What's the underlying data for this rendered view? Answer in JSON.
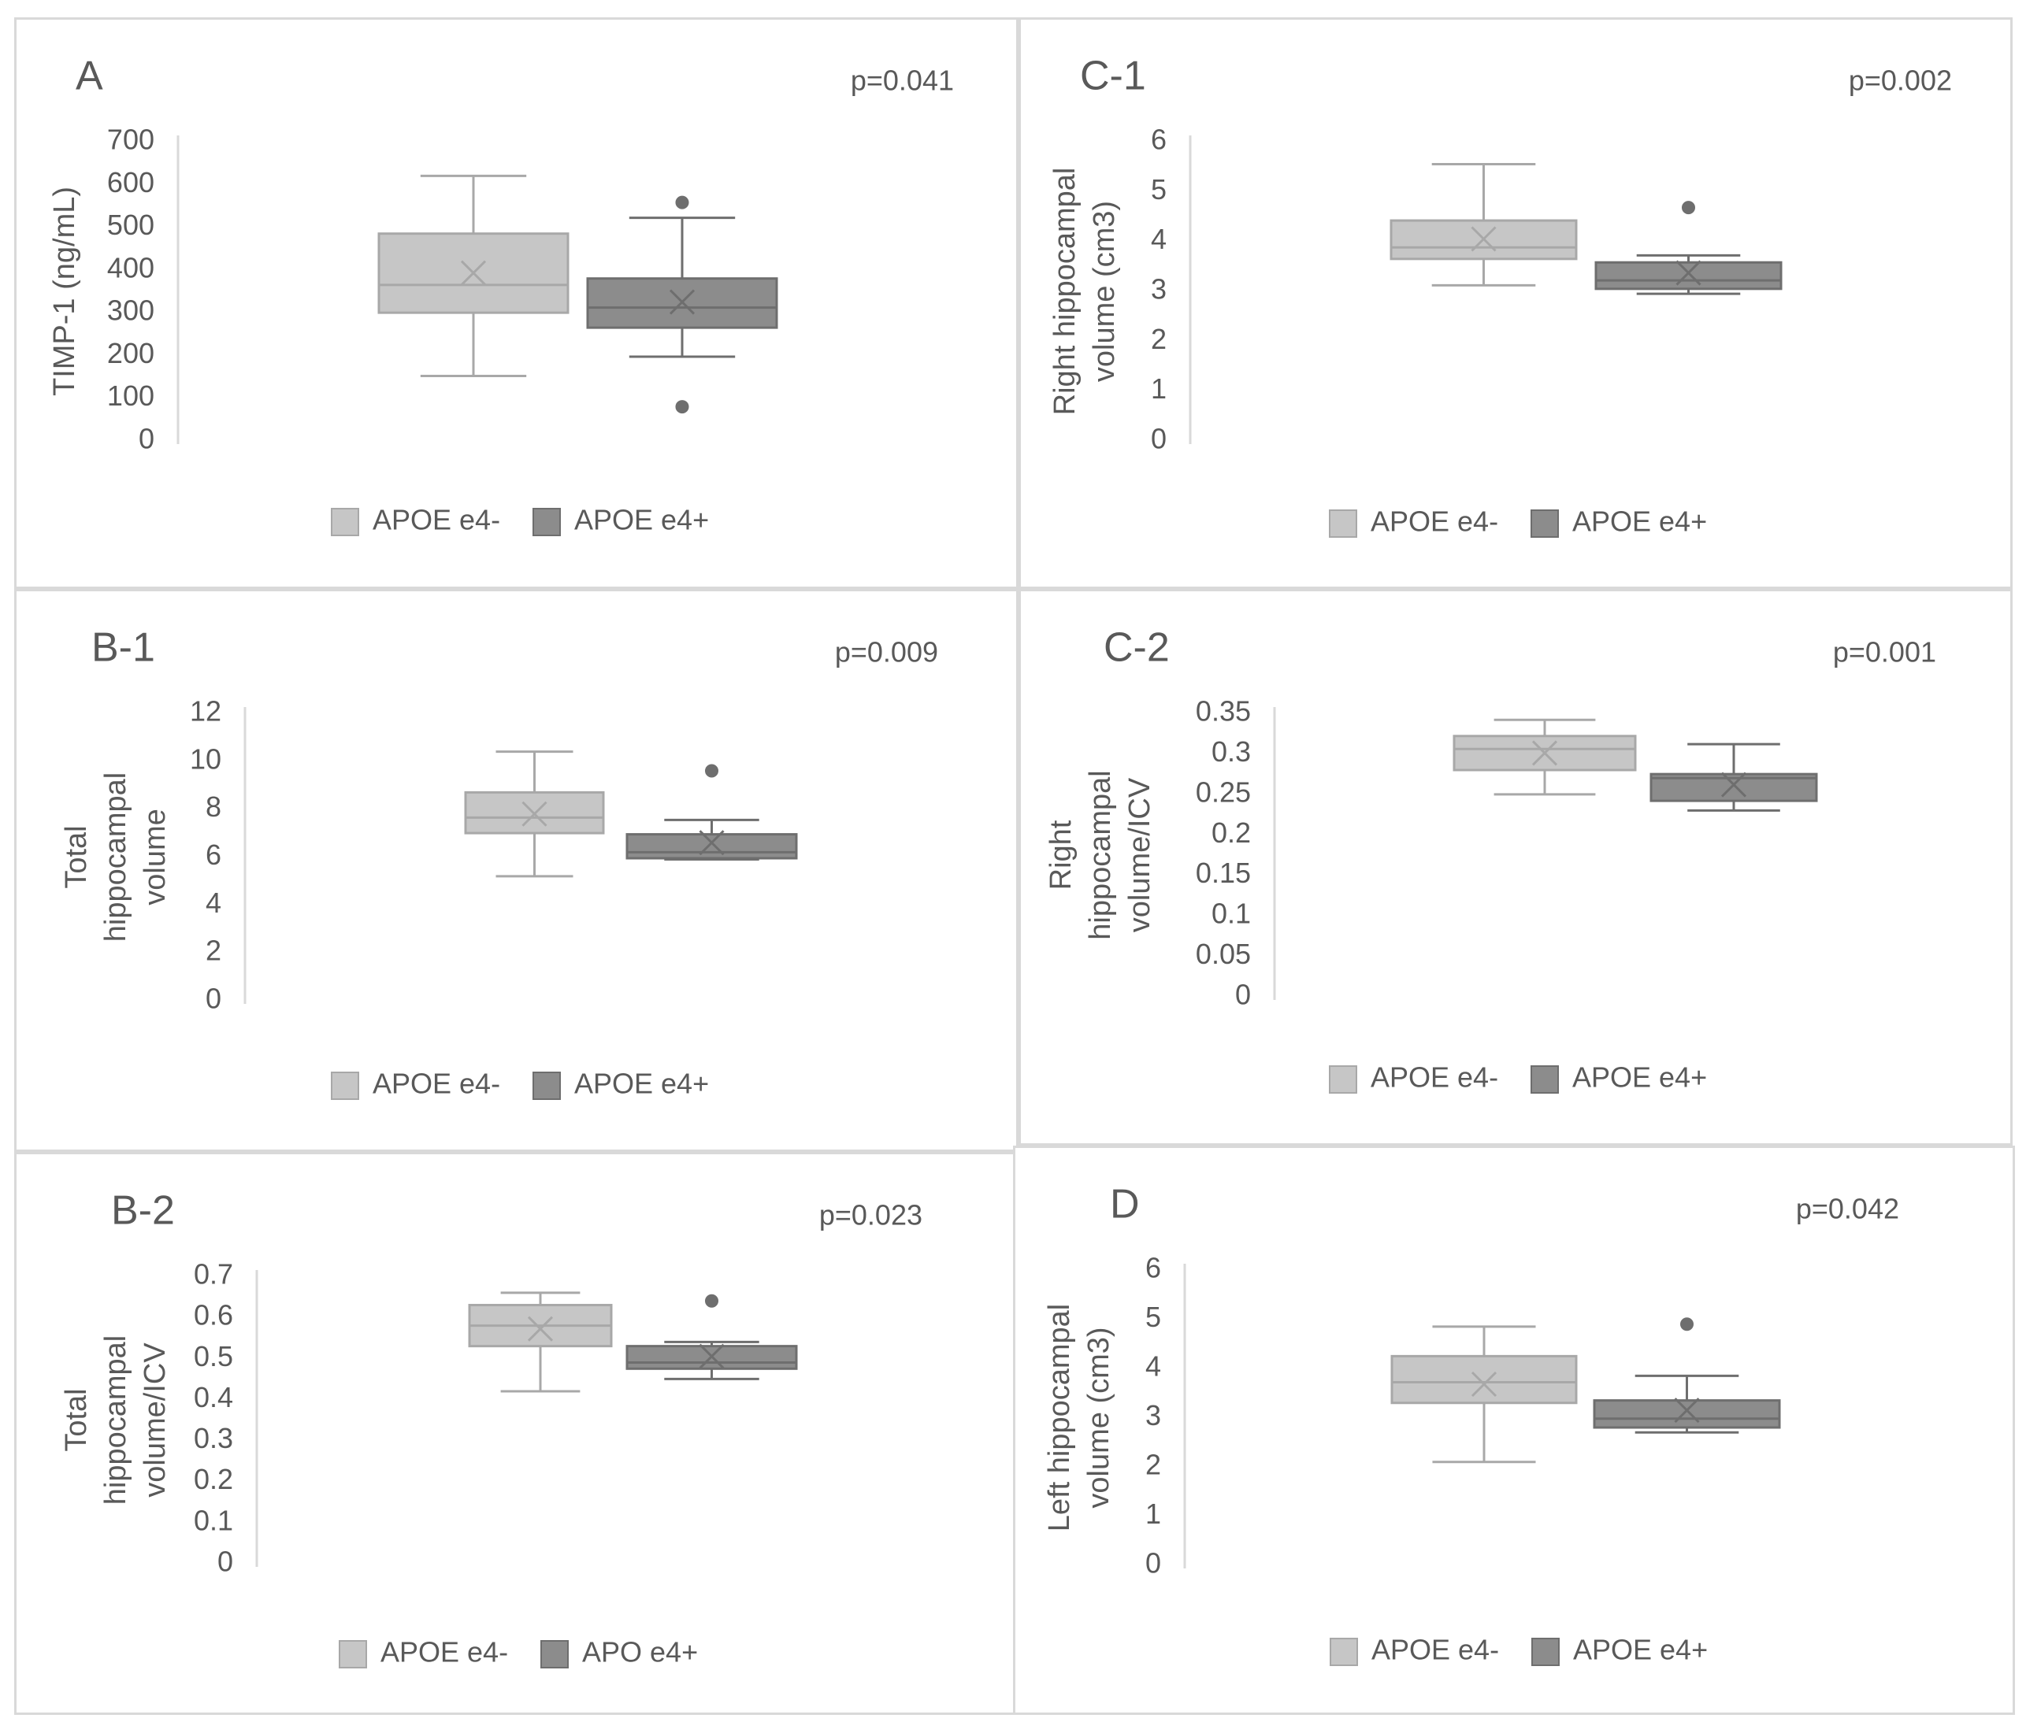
{
  "colors": {
    "e4_neg_fill": "#c6c6c6",
    "e4_neg_stroke": "#a8a8a8",
    "e4_pos_fill": "#8c8c8c",
    "e4_pos_stroke": "#6e6e6e",
    "axis": "#d9d9d9",
    "text": "#595959"
  },
  "chart_data": [
    {
      "id": "A",
      "type": "boxplot",
      "panel_label": "A",
      "p_value": "p=0.041",
      "ylabel_lines": [
        "TIMP-1 (ng/mL)"
      ],
      "ylim": [
        0,
        700
      ],
      "yticks": [
        {
          "v": 0,
          "label": "0"
        },
        {
          "v": 100,
          "label": "100"
        },
        {
          "v": 200,
          "label": "200"
        },
        {
          "v": 300,
          "label": "300"
        },
        {
          "v": 400,
          "label": "400"
        },
        {
          "v": 500,
          "label": "500"
        },
        {
          "v": 600,
          "label": "600"
        },
        {
          "v": 700,
          "label": "700"
        }
      ],
      "grid": false,
      "legend": [
        "APOE e4-",
        "APOE e4+"
      ],
      "groups": [
        {
          "name": "APOE e4-",
          "min": 152,
          "q1": 300,
          "median": 365,
          "q3": 485,
          "max": 620,
          "mean": 393,
          "outliers": []
        },
        {
          "name": "APOE e4+",
          "min": 197,
          "q1": 265,
          "median": 312,
          "q3": 380,
          "max": 522,
          "mean": 325,
          "outliers": [
            80,
            558
          ]
        }
      ]
    },
    {
      "id": "C-1",
      "type": "boxplot",
      "panel_label": "C-1",
      "p_value": "p=0.002",
      "ylabel_lines": [
        "Right hippocampal",
        "volume (cm3)"
      ],
      "ylim": [
        0,
        6
      ],
      "yticks": [
        {
          "v": 0,
          "label": "0"
        },
        {
          "v": 1,
          "label": "1"
        },
        {
          "v": 2,
          "label": "2"
        },
        {
          "v": 3,
          "label": "3"
        },
        {
          "v": 4,
          "label": "4"
        },
        {
          "v": 5,
          "label": "5"
        },
        {
          "v": 6,
          "label": "6"
        }
      ],
      "grid": false,
      "legend": [
        "APOE e4-",
        "APOE e4+"
      ],
      "groups": [
        {
          "name": "APOE e4-",
          "min": 3.12,
          "q1": 3.65,
          "median": 3.88,
          "q3": 4.42,
          "max": 5.55,
          "mean": 4.05,
          "outliers": []
        },
        {
          "name": "APOE e4+",
          "min": 2.95,
          "q1": 3.05,
          "median": 3.22,
          "q3": 3.58,
          "max": 3.72,
          "mean": 3.37,
          "outliers": [
            4.68
          ]
        }
      ]
    },
    {
      "id": "B-1",
      "type": "boxplot",
      "panel_label": "B-1",
      "p_value": "p=0.009",
      "ylabel_lines": [
        "Total",
        "hippocampal",
        "volume"
      ],
      "ylim": [
        0,
        12
      ],
      "yticks": [
        {
          "v": 0,
          "label": "0"
        },
        {
          "v": 2,
          "label": "2"
        },
        {
          "v": 4,
          "label": "4"
        },
        {
          "v": 6,
          "label": "6"
        },
        {
          "v": 8,
          "label": "8"
        },
        {
          "v": 10,
          "label": "10"
        },
        {
          "v": 12,
          "label": "12"
        }
      ],
      "grid": false,
      "legend": [
        "APOE e4-",
        "APOE e4+"
      ],
      "groups": [
        {
          "name": "APOE e4-",
          "min": 5.2,
          "q1": 7.0,
          "median": 7.65,
          "q3": 8.7,
          "max": 10.4,
          "mean": 7.8,
          "outliers": []
        },
        {
          "name": "APOE e4+",
          "min": 5.9,
          "q1": 5.95,
          "median": 6.2,
          "q3": 6.95,
          "max": 7.55,
          "mean": 6.6,
          "outliers": [
            9.6
          ]
        }
      ]
    },
    {
      "id": "C-2",
      "type": "boxplot",
      "panel_label": "C-2",
      "p_value": "p=0.001",
      "ylabel_lines": [
        "Right",
        "hippocampal",
        "volume/ICV"
      ],
      "ylim": [
        0,
        0.35
      ],
      "yticks": [
        {
          "v": 0,
          "label": "0"
        },
        {
          "v": 0.05,
          "label": "0.05"
        },
        {
          "v": 0.1,
          "label": "0.1"
        },
        {
          "v": 0.15,
          "label": "0.15"
        },
        {
          "v": 0.2,
          "label": "0.2"
        },
        {
          "v": 0.25,
          "label": "0.25"
        },
        {
          "v": 0.3,
          "label": "0.3"
        },
        {
          "v": 0.35,
          "label": "0.35"
        }
      ],
      "grid": false,
      "legend": [
        "APOE e4-",
        "APOE e4+"
      ],
      "groups": [
        {
          "name": "APOE e4-",
          "min": 0.25,
          "q1": 0.28,
          "median": 0.306,
          "q3": 0.322,
          "max": 0.342,
          "mean": 0.301,
          "outliers": []
        },
        {
          "name": "APOE e4+",
          "min": 0.23,
          "q1": 0.242,
          "median": 0.27,
          "q3": 0.275,
          "max": 0.312,
          "mean": 0.262,
          "outliers": []
        }
      ]
    },
    {
      "id": "B-2",
      "type": "boxplot",
      "panel_label": "B-2",
      "p_value": "p=0.023",
      "ylabel_lines": [
        "Total",
        "hippocampal",
        "volume/ICV"
      ],
      "ylim": [
        0,
        0.7
      ],
      "yticks": [
        {
          "v": 0,
          "label": "0"
        },
        {
          "v": 0.1,
          "label": "0.1"
        },
        {
          "v": 0.2,
          "label": "0.2"
        },
        {
          "v": 0.3,
          "label": "0.3"
        },
        {
          "v": 0.4,
          "label": "0.4"
        },
        {
          "v": 0.5,
          "label": "0.5"
        },
        {
          "v": 0.6,
          "label": "0.6"
        },
        {
          "v": 0.7,
          "label": "0.7"
        }
      ],
      "grid": false,
      "legend": [
        "APOE e4-",
        "APO e4+"
      ],
      "groups": [
        {
          "name": "APOE e4-",
          "min": 0.42,
          "q1": 0.53,
          "median": 0.58,
          "q3": 0.63,
          "max": 0.66,
          "mean": 0.572,
          "outliers": []
        },
        {
          "name": "APO e4+",
          "min": 0.45,
          "q1": 0.475,
          "median": 0.49,
          "q3": 0.53,
          "max": 0.54,
          "mean": 0.505,
          "outliers": [
            0.64
          ]
        }
      ]
    },
    {
      "id": "D",
      "type": "boxplot",
      "panel_label": "D",
      "p_value": "p=0.042",
      "ylabel_lines": [
        "Left hippocampal",
        "volume (cm3)"
      ],
      "ylim": [
        0,
        6
      ],
      "yticks": [
        {
          "v": 0,
          "label": "0"
        },
        {
          "v": 1,
          "label": "1"
        },
        {
          "v": 2,
          "label": "2"
        },
        {
          "v": 3,
          "label": "3"
        },
        {
          "v": 4,
          "label": "4"
        },
        {
          "v": 5,
          "label": "5"
        },
        {
          "v": 6,
          "label": "6"
        }
      ],
      "grid": false,
      "legend": [
        "APOE e4-",
        "APOE e4+"
      ],
      "groups": [
        {
          "name": "APOE e4-",
          "min": 2.1,
          "q1": 3.3,
          "median": 3.72,
          "q3": 4.25,
          "max": 4.85,
          "mean": 3.68,
          "outliers": []
        },
        {
          "name": "APOE e4+",
          "min": 2.7,
          "q1": 2.8,
          "median": 2.98,
          "q3": 3.35,
          "max": 3.85,
          "mean": 3.15,
          "outliers": [
            4.9
          ]
        }
      ]
    }
  ]
}
